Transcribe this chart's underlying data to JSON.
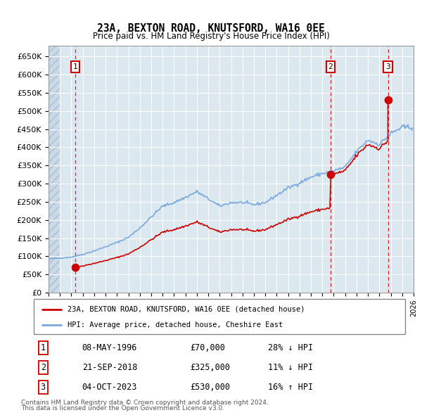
{
  "title": "23A, BEXTON ROAD, KNUTSFORD, WA16 0EE",
  "subtitle": "Price paid vs. HM Land Registry's House Price Index (HPI)",
  "sale_label": "23A, BEXTON ROAD, KNUTSFORD, WA16 0EE (detached house)",
  "hpi_label": "HPI: Average price, detached house, Cheshire East",
  "footnote1": "Contains HM Land Registry data © Crown copyright and database right 2024.",
  "footnote2": "This data is licensed under the Open Government Licence v3.0.",
  "sales": [
    {
      "num": 1,
      "date": "08-MAY-1996",
      "price": 70000,
      "pct": "28%",
      "dir": "↓",
      "year": 1996.36
    },
    {
      "num": 2,
      "date": "21-SEP-2018",
      "price": 325000,
      "pct": "11%",
      "dir": "↓",
      "year": 2018.72
    },
    {
      "num": 3,
      "date": "04-OCT-2023",
      "price": 530000,
      "pct": "16%",
      "dir": "↑",
      "year": 2023.75
    }
  ],
  "ylim": [
    0,
    680000
  ],
  "yticks": [
    0,
    50000,
    100000,
    150000,
    200000,
    250000,
    300000,
    350000,
    400000,
    450000,
    500000,
    550000,
    600000,
    650000
  ],
  "ytick_labels": [
    "£0",
    "£50K",
    "£100K",
    "£150K",
    "£200K",
    "£250K",
    "£300K",
    "£350K",
    "£400K",
    "£450K",
    "£500K",
    "£550K",
    "£600K",
    "£650K"
  ],
  "xlim_start": 1994.0,
  "xlim_end": 2026.0,
  "sale_color": "#cc0000",
  "hpi_color": "#7aaadd",
  "background_plot": "#dce8f0",
  "background_hatch": "#c8d8e8",
  "grid_color": "#ffffff",
  "vline_color": "#dd2222"
}
